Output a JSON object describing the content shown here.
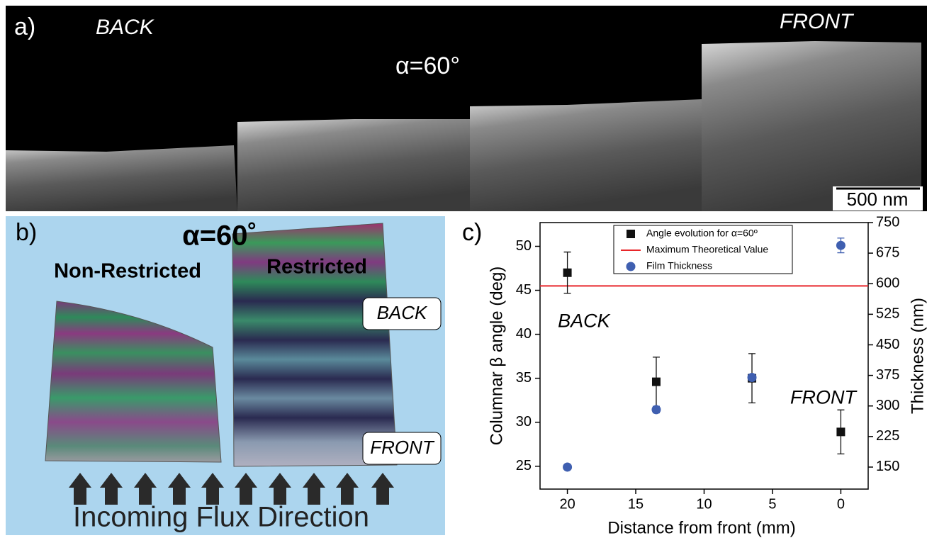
{
  "panel_a": {
    "label": "a)",
    "back": "BACK",
    "front": "FRONT",
    "alpha": "α=60°",
    "scale_bar": "500 nm"
  },
  "panel_b": {
    "label": "b)",
    "alpha": "α=60˚",
    "left_sample": "Non-Restricted",
    "right_sample": "Restricted",
    "back": "BACK",
    "front": "FRONT",
    "caption": "Incoming Flux Direction"
  },
  "chart_data": {
    "type": "scatter",
    "panel_label": "c)",
    "x_label": "Distance from front (mm)",
    "y_label": "Columnar β angle (deg)",
    "y2_label": "Thickness (nm)",
    "xlim": [
      22,
      -2
    ],
    "xticks": [
      20,
      15,
      10,
      5,
      0
    ],
    "ylim": [
      22.4,
      52.7
    ],
    "yticks": [
      25,
      30,
      35,
      40,
      45,
      50
    ],
    "y2lim": [
      96,
      750
    ],
    "y2ticks": [
      150,
      225,
      300,
      375,
      450,
      525,
      600,
      675,
      750
    ],
    "x": [
      20,
      13.5,
      6.5,
      0
    ],
    "series": [
      {
        "name": "Angle evolution for α=60º",
        "color": "#111111",
        "marker": "square",
        "values": [
          47,
          34.6,
          35,
          28.9
        ],
        "errors": [
          2.35,
          2.8,
          2.8,
          2.5
        ]
      },
      {
        "name": "Film Thickness",
        "color": "#3f5fb0",
        "marker": "circle",
        "axis": "y2",
        "values": [
          150,
          291,
          370,
          694
        ],
        "errors": [
          5,
          8,
          8,
          18
        ]
      }
    ],
    "reference_lines": [
      {
        "name": "Maximum Theoretical Value",
        "color": "#e8262a",
        "value": 45.5
      }
    ],
    "annotations": [
      {
        "text": "BACK",
        "x": 20.7,
        "y": 41.4
      },
      {
        "text": "FRONT",
        "x": 3.7,
        "y": 32.7
      }
    ]
  }
}
